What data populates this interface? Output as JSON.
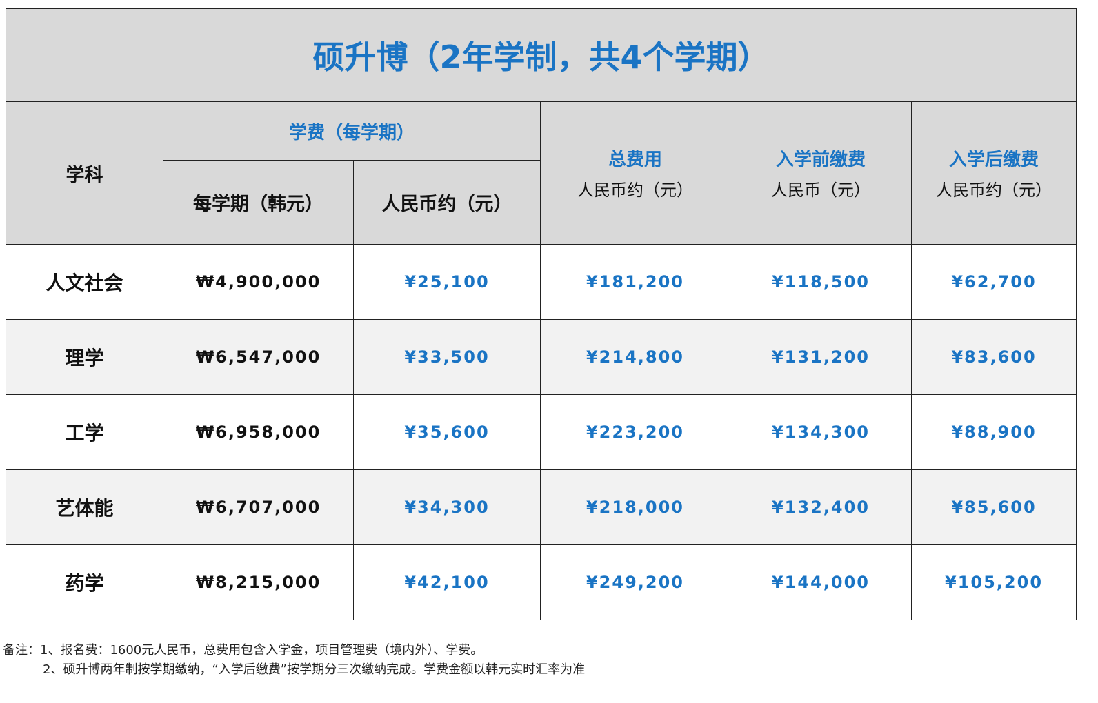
{
  "title": "硕升博（2年学制，共4个学期）",
  "header": {
    "subject": "学科",
    "tuition_group": "学费（每学期）",
    "per_term_krw": "每学期（韩元）",
    "per_term_cny": "人民币约（元）",
    "total_label": "总费用",
    "total_unit": "人民币约（元）",
    "before_label": "入学前缴费",
    "before_unit": "人民币（元）",
    "after_label": "入学后缴费",
    "after_unit": "人民币约（元）"
  },
  "rows": [
    {
      "subject": "人文社会",
      "krw": "₩4,900,000",
      "cny": "¥25,100",
      "total": "¥181,200",
      "before": "¥118,500",
      "after": "¥62,700"
    },
    {
      "subject": "理学",
      "krw": "₩6,547,000",
      "cny": "¥33,500",
      "total": "¥214,800",
      "before": "¥131,200",
      "after": "¥83,600"
    },
    {
      "subject": "工学",
      "krw": "₩6,958,000",
      "cny": "¥35,600",
      "total": "¥223,200",
      "before": "¥134,300",
      "after": "¥88,900"
    },
    {
      "subject": "艺体能",
      "krw": "₩6,707,000",
      "cny": "¥34,300",
      "total": "¥218,000",
      "before": "¥132,400",
      "after": "¥85,600"
    },
    {
      "subject": "药学",
      "krw": "₩8,215,000",
      "cny": "¥42,100",
      "total": "¥249,200",
      "before": "¥144,000",
      "after": "¥105,200"
    }
  ],
  "notes": {
    "line1": "备注：1、报名费：1600元人民币，总费用包含入学金，项目管理费（境内外）、学费。",
    "line2": "2、硕升博两年制按学期缴纳，“入学后缴费”按学期分三次缴纳完成。学费金额以韩元实时汇率为准"
  },
  "colors": {
    "accent_blue": "#1a74c4",
    "header_bg": "#d9d9d9",
    "alt_row_bg": "#f2f2f2"
  }
}
